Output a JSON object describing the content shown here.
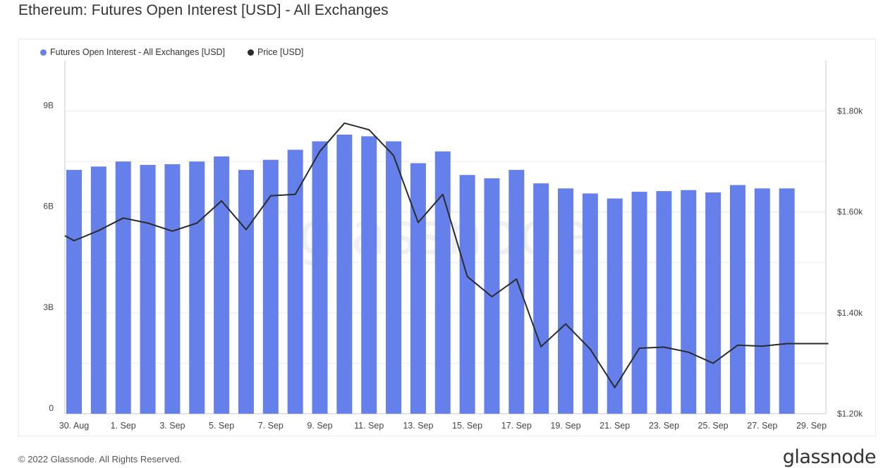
{
  "page": {
    "title": "Ethereum: Futures Open Interest [USD] - All Exchanges",
    "copyright": "© 2022 Glassnode. All Rights Reserved.",
    "logo": "glassnode",
    "watermark": "glassnode"
  },
  "colors": {
    "bar": "#6580ea",
    "line": "#2b2b2b",
    "grid": "#ececf2",
    "axis": "#c8c8d0",
    "text": "#444444"
  },
  "chart_data": {
    "type": "bar",
    "title": "Ethereum: Futures Open Interest [USD] - All Exchanges",
    "legend": [
      {
        "name": "Futures Open Interest - All Exchanges [USD]",
        "color": "#6580ea"
      },
      {
        "name": "Price [USD]",
        "color": "#2b2b2b"
      }
    ],
    "legend_position": "top-left",
    "grid": true,
    "x_tick_labels": [
      "30. Aug",
      "1. Sep",
      "3. Sep",
      "5. Sep",
      "7. Sep",
      "9. Sep",
      "11. Sep",
      "13. Sep",
      "15. Sep",
      "17. Sep",
      "19. Sep",
      "21. Sep",
      "23. Sep",
      "25. Sep",
      "27. Sep",
      "29. Sep"
    ],
    "y_left": {
      "ticks": [
        0,
        3,
        6,
        9
      ],
      "tick_labels": [
        "0",
        "3B",
        "6B",
        "9B"
      ],
      "range": [
        0,
        10.5
      ],
      "unit": "B"
    },
    "y_right": {
      "ticks": [
        1.2,
        1.4,
        1.6,
        1.8
      ],
      "tick_labels": [
        "$1.20k",
        "$1.40k",
        "$1.60k",
        "$1.80k"
      ],
      "range": [
        1.2,
        1.9
      ],
      "unit": "k USD"
    },
    "bars": {
      "name": "Futures Open Interest - All Exchanges [USD]",
      "dates": [
        "30. Aug",
        "31. Aug",
        "1. Sep",
        "2. Sep",
        "3. Sep",
        "4. Sep",
        "5. Sep",
        "6. Sep",
        "7. Sep",
        "8. Sep",
        "9. Sep",
        "10. Sep",
        "11. Sep",
        "12. Sep",
        "13. Sep",
        "14. Sep",
        "15. Sep",
        "16. Sep",
        "17. Sep",
        "18. Sep",
        "19. Sep",
        "20. Sep",
        "21. Sep",
        "22. Sep",
        "23. Sep",
        "24. Sep",
        "25. Sep",
        "26. Sep",
        "27. Sep",
        "28. Sep"
      ],
      "values": [
        7.25,
        7.35,
        7.5,
        7.4,
        7.42,
        7.5,
        7.65,
        7.25,
        7.55,
        7.85,
        8.1,
        8.3,
        8.25,
        8.1,
        7.45,
        7.8,
        7.1,
        7.0,
        7.25,
        6.85,
        6.7,
        6.55,
        6.4,
        6.6,
        6.62,
        6.65,
        6.58,
        6.8,
        6.7,
        6.7
      ]
    },
    "line": {
      "name": "Price [USD]",
      "dates": [
        "29. Aug",
        "30. Aug",
        "31. Aug",
        "1. Sep",
        "2. Sep",
        "3. Sep",
        "4. Sep",
        "5. Sep",
        "6. Sep",
        "7. Sep",
        "8. Sep",
        "9. Sep",
        "10. Sep",
        "11. Sep",
        "12. Sep",
        "13. Sep",
        "14. Sep",
        "15. Sep",
        "16. Sep",
        "17. Sep",
        "18. Sep",
        "19. Sep",
        "20. Sep",
        "21. Sep",
        "22. Sep",
        "23. Sep",
        "24. Sep",
        "25. Sep",
        "26. Sep",
        "27. Sep",
        "28. Sep",
        "29. Sep"
      ],
      "values": [
        1.553,
        1.543,
        1.563,
        1.588,
        1.578,
        1.562,
        1.578,
        1.622,
        1.565,
        1.632,
        1.635,
        1.72,
        1.776,
        1.763,
        1.712,
        1.579,
        1.635,
        1.472,
        1.432,
        1.467,
        1.333,
        1.378,
        1.328,
        1.252,
        1.33,
        1.332,
        1.322,
        1.3,
        1.336,
        1.334,
        1.339,
        1.339
      ]
    }
  }
}
